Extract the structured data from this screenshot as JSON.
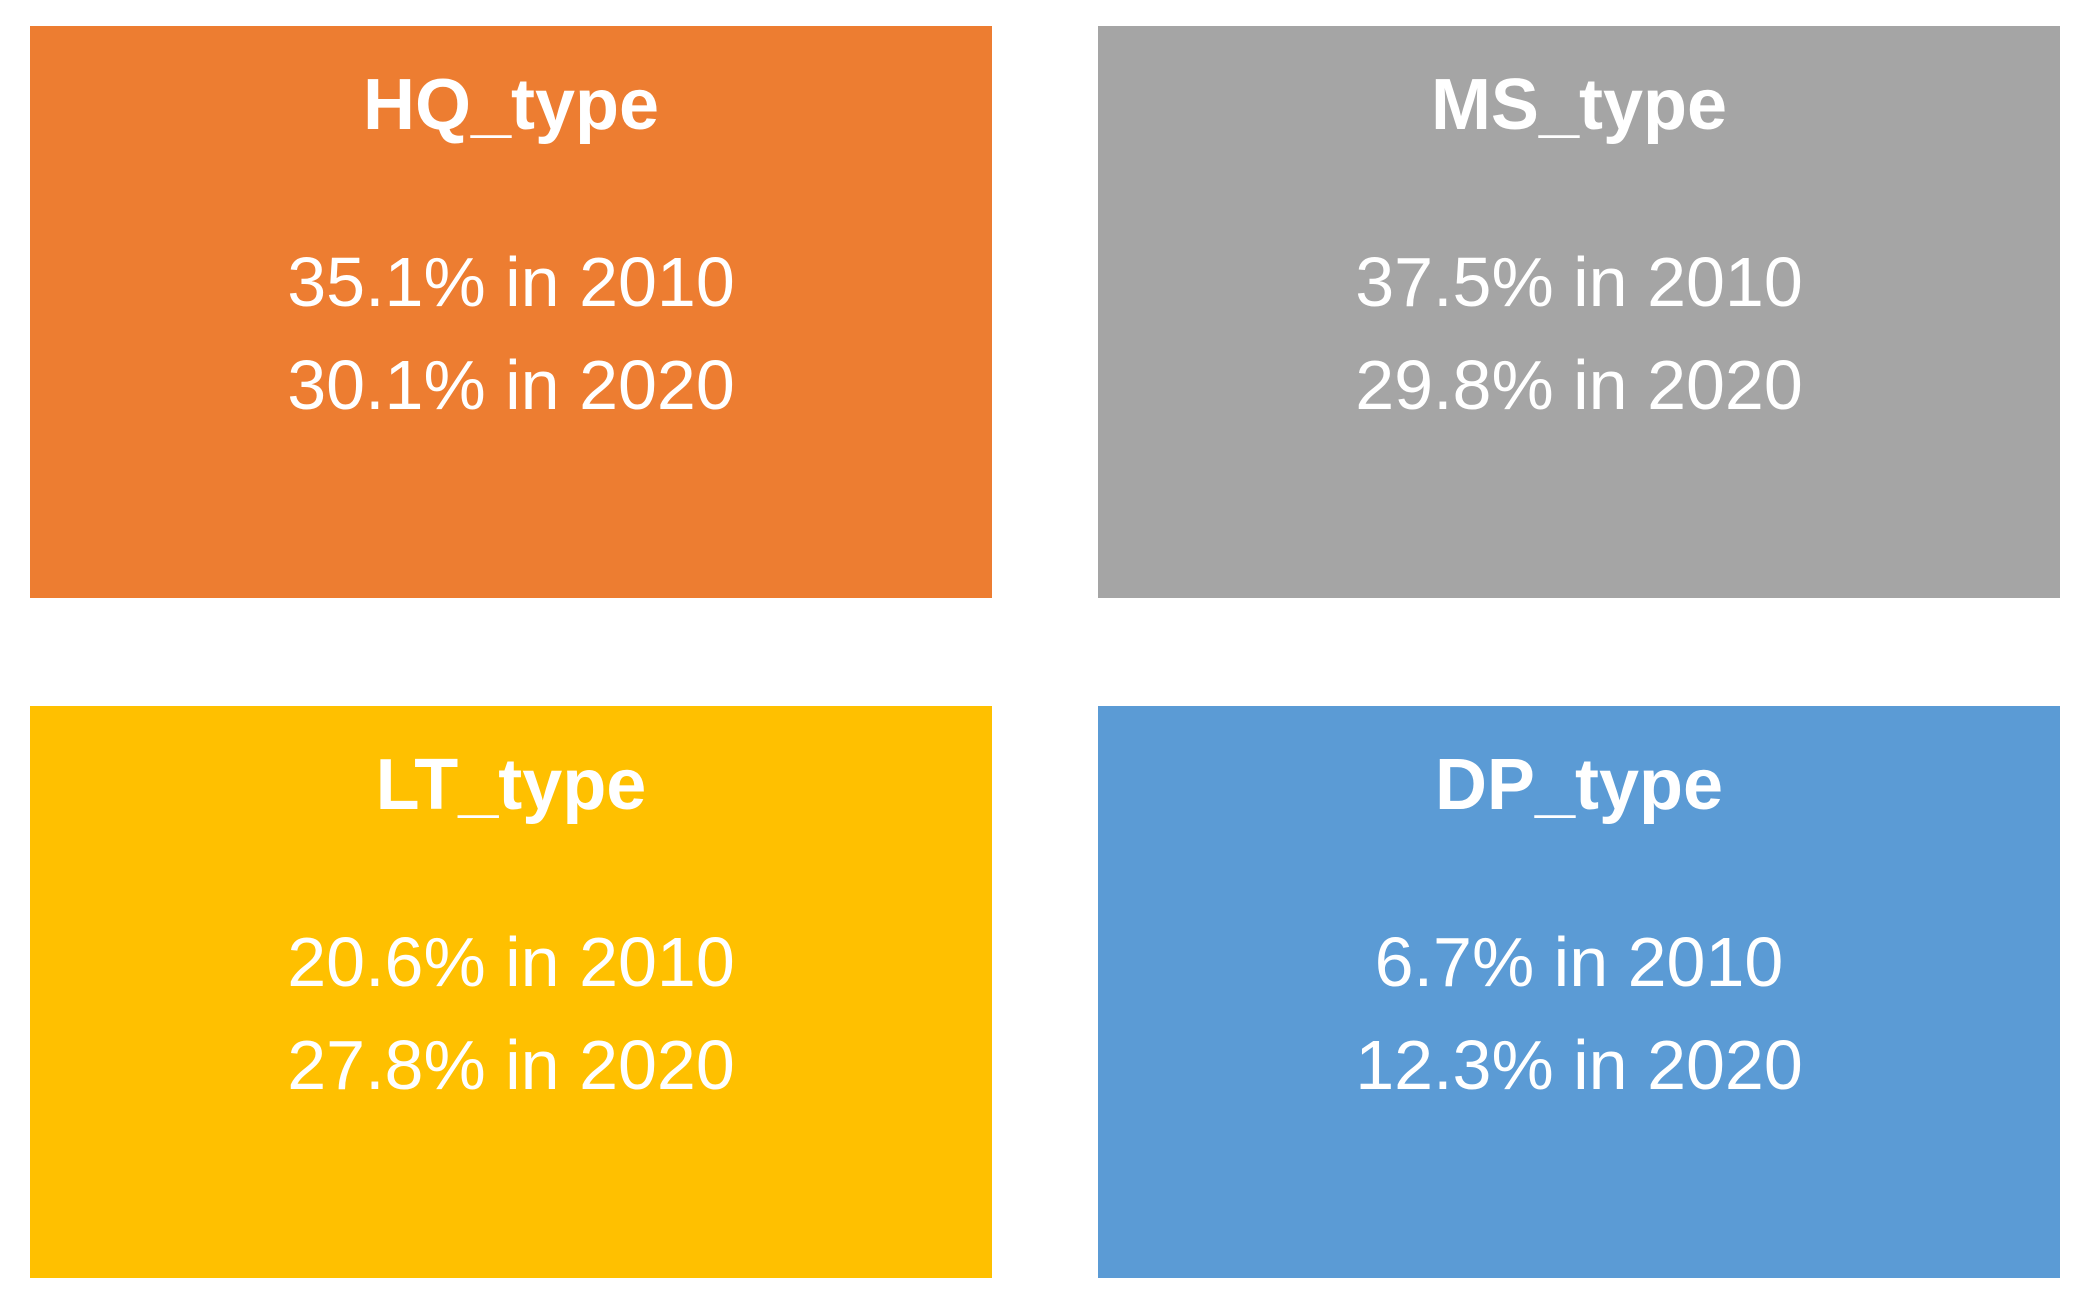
{
  "chart_data": {
    "type": "table",
    "title": "",
    "categories": [
      "HQ_type",
      "MS_type",
      "LT_type",
      "DP_type"
    ],
    "series": [
      {
        "name": "2010",
        "values": [
          35.1,
          37.5,
          20.6,
          6.7
        ]
      },
      {
        "name": "2020",
        "values": [
          30.1,
          29.8,
          27.8,
          12.3
        ]
      }
    ],
    "value_unit": "%",
    "layout": "2x2-grid-of-stat-cards",
    "legend_position": "none",
    "grid": false
  },
  "cards": [
    {
      "title": "HQ_type",
      "stat_2010": "35.1% in 2010",
      "stat_2020": "30.1% in 2020",
      "color": "#ED7D31"
    },
    {
      "title": "MS_type",
      "stat_2010": "37.5% in 2010",
      "stat_2020": "29.8% in 2020",
      "color": "#A5A5A5"
    },
    {
      "title": "LT_type",
      "stat_2010": "20.6% in 2010",
      "stat_2020": "27.8% in 2020",
      "color": "#FFC000"
    },
    {
      "title": "DP_type",
      "stat_2010": "6.7% in 2010",
      "stat_2020": "12.3% in 2020",
      "color": "#5B9BD5"
    }
  ],
  "colors": {
    "text": "#FFFFFF",
    "background": "#FFFFFF",
    "hq_orange": "#ED7D31",
    "ms_gray": "#A5A5A5",
    "lt_yellow": "#FFC000",
    "dp_blue": "#5B9BD5"
  }
}
